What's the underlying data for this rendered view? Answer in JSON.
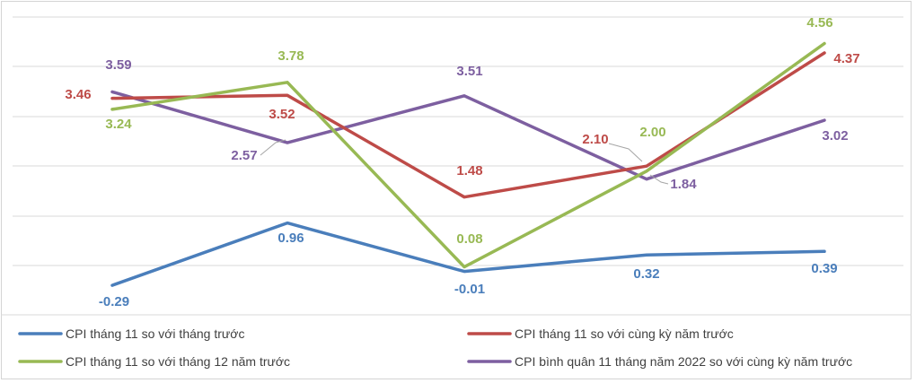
{
  "chart_data": {
    "type": "line",
    "title": "",
    "xlabel": "",
    "ylabel": "",
    "categories": [
      "",
      "",
      "",
      "",
      ""
    ],
    "ylim": [
      -0.5,
      5.0
    ],
    "grid": true,
    "legend_position": "bottom",
    "series": [
      {
        "name": "CPI tháng 11 so với tháng trước",
        "color": "#4a7ebb",
        "values": [
          -0.29,
          0.96,
          -0.01,
          0.32,
          0.39
        ],
        "labels": [
          "-0.29",
          "0.96",
          "-0.01",
          "0.32",
          "0.39"
        ]
      },
      {
        "name": "CPI tháng 11 so với cùng kỳ năm trước",
        "color": "#be4b48",
        "values": [
          3.46,
          3.52,
          1.48,
          2.1,
          4.37
        ],
        "labels": [
          "3.46",
          "3.52",
          "1.48",
          "2.10",
          "4.37"
        ]
      },
      {
        "name": "CPI tháng 11 so với tháng 12 năm trước",
        "color": "#98b954",
        "values": [
          3.24,
          3.78,
          0.08,
          2.0,
          4.56
        ],
        "labels": [
          "3.24",
          "3.78",
          "0.08",
          "2.00",
          "4.56"
        ]
      },
      {
        "name": "CPI bình quân 11 tháng năm 2022 so với cùng kỳ năm trước",
        "color": "#7d5fa0",
        "values": [
          3.59,
          2.57,
          3.51,
          1.84,
          3.02
        ],
        "labels": [
          "3.59",
          "2.57",
          "3.51",
          "1.84",
          "3.02"
        ]
      }
    ]
  }
}
